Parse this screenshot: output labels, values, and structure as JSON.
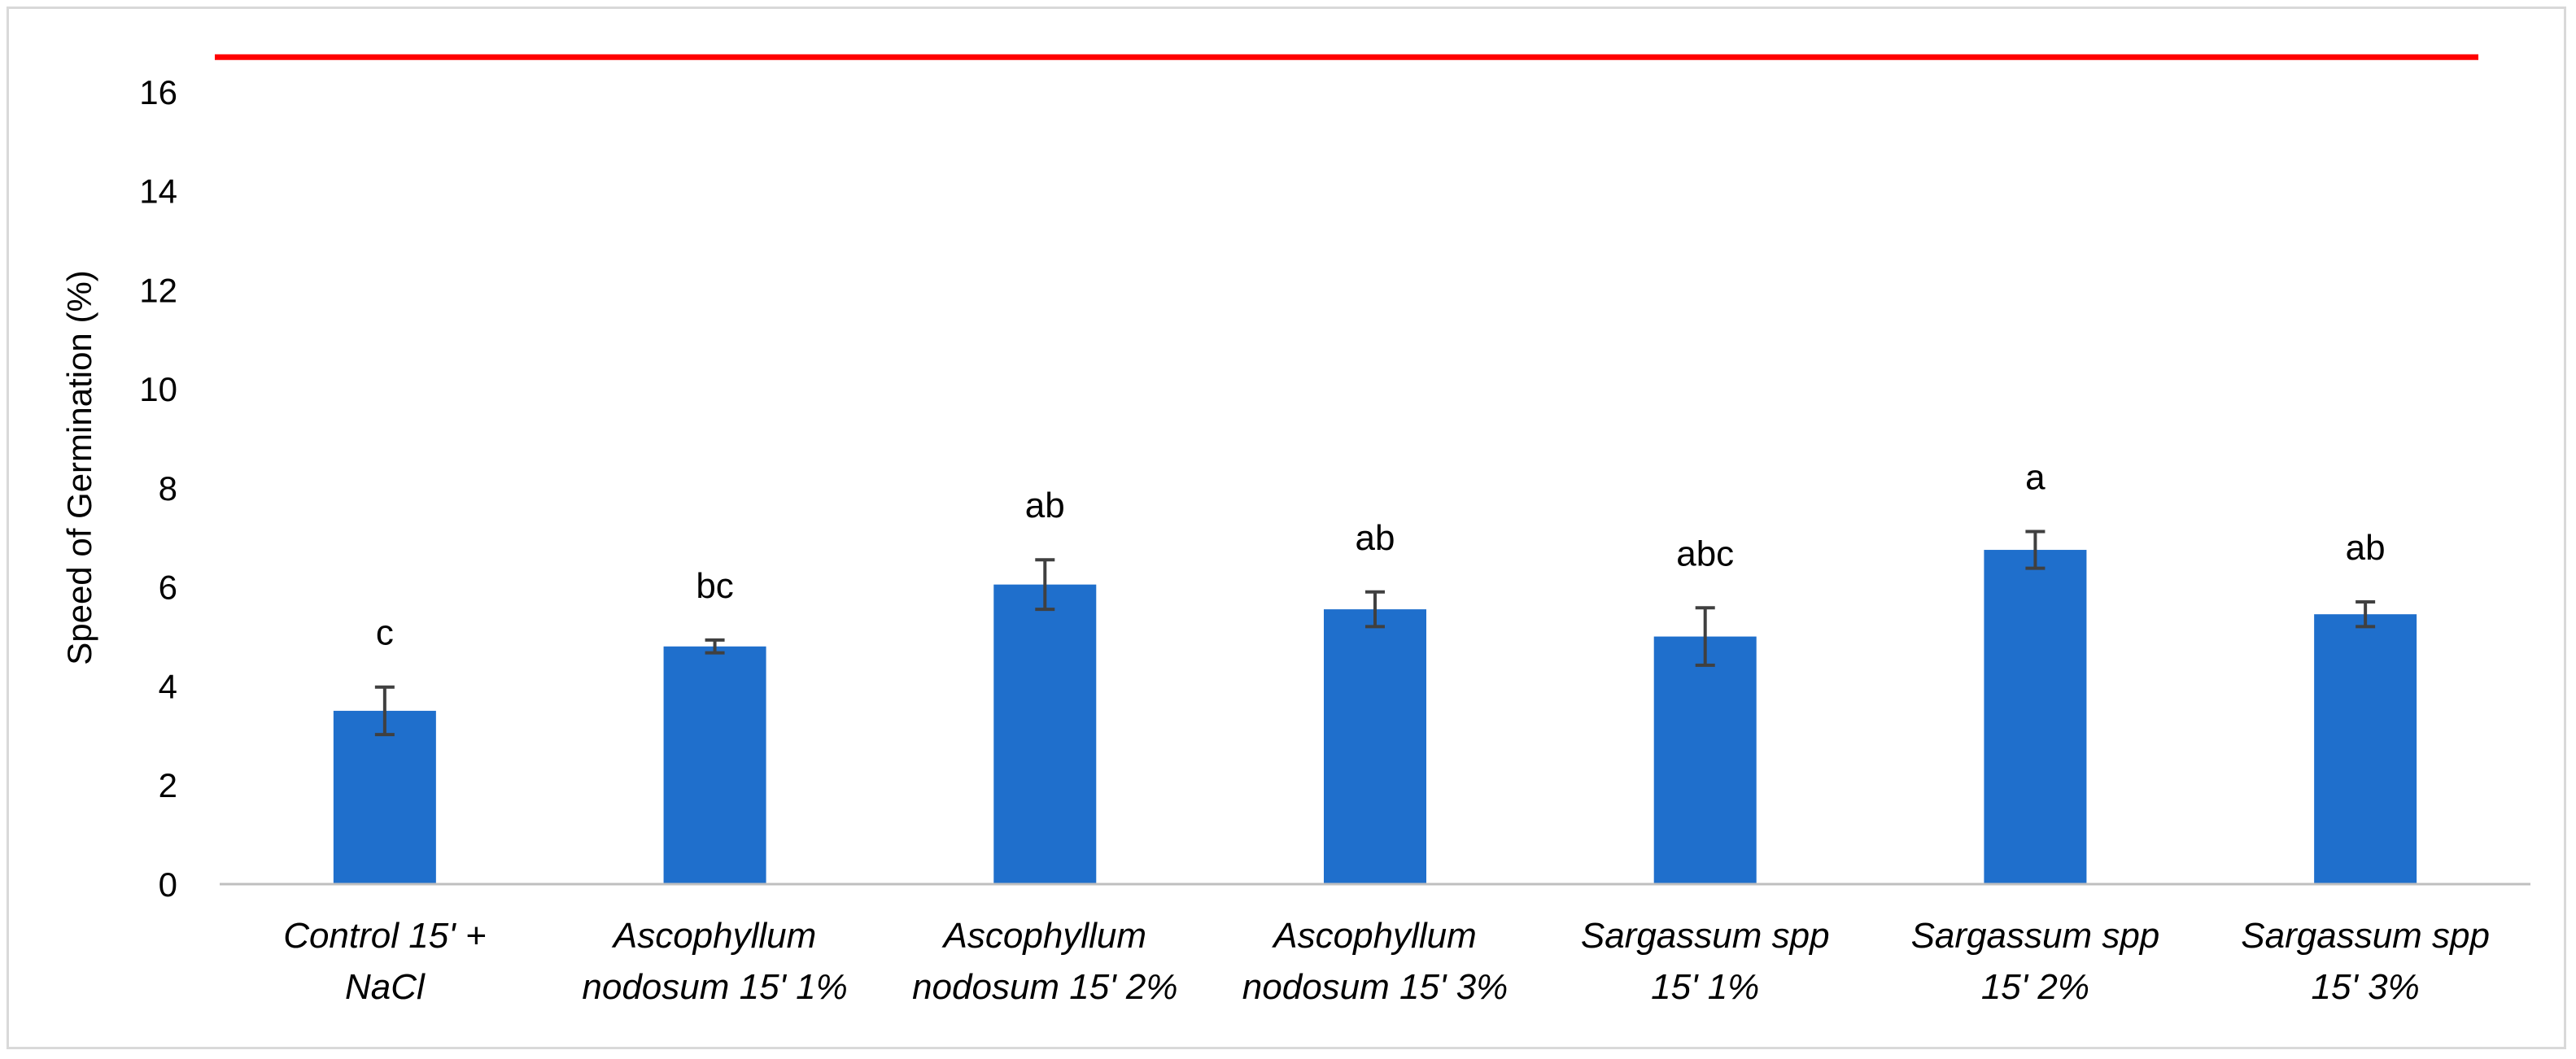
{
  "colors": {
    "bar": "#1f6fcc",
    "reference_line": "#ff0000",
    "error_bar": "#404040",
    "axis": "#bfbfbf"
  },
  "chart_data": {
    "type": "bar",
    "title": "",
    "xlabel": "",
    "ylabel": "Speed of Germination (%)",
    "ylim": [
      0,
      17
    ],
    "yticks": [
      0,
      2,
      4,
      6,
      8,
      10,
      12,
      14,
      16
    ],
    "grid": false,
    "legend": "none",
    "categories": [
      [
        "Control 15' +",
        "NaCl"
      ],
      [
        "Ascophyllum",
        "nodosum 15' 1%"
      ],
      [
        "Ascophyllum",
        "nodosum 15' 2%"
      ],
      [
        "Ascophyllum",
        "nodosum 15' 3%"
      ],
      [
        "Sargassum spp",
        "15' 1%"
      ],
      [
        "Sargassum spp",
        "15' 2%"
      ],
      [
        "Sargassum spp",
        "15' 3%"
      ]
    ],
    "values": [
      3.5,
      4.8,
      6.05,
      5.55,
      5.0,
      6.75,
      5.45
    ],
    "errors": [
      0.48,
      0.13,
      0.5,
      0.35,
      0.58,
      0.37,
      0.25
    ],
    "significance_labels": [
      "c",
      "bc",
      "ab",
      "ab",
      "abc",
      "a",
      "ab"
    ],
    "reference_line": 16.7
  }
}
